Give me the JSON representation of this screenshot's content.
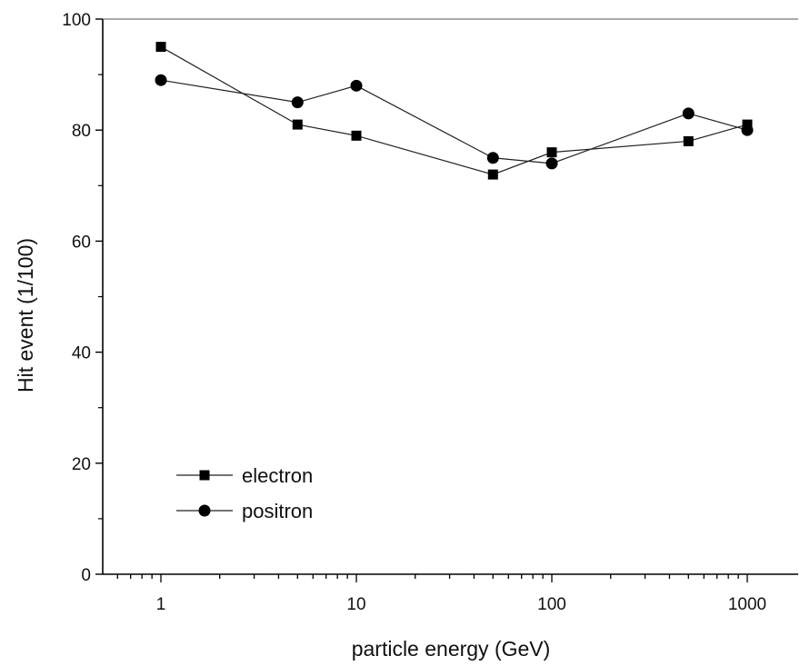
{
  "chart_data": {
    "type": "line",
    "title": "",
    "xlabel": "particle energy (GeV)",
    "ylabel": "Hit event (1/100)",
    "xscale": "log",
    "xlim": [
      0.5,
      3000
    ],
    "ylim": [
      0,
      100
    ],
    "xticks": [
      1,
      10,
      100,
      1000
    ],
    "xtick_labels": [
      "1",
      "10",
      "100",
      "1000"
    ],
    "yticks": [
      0,
      20,
      40,
      60,
      80,
      100
    ],
    "ytick_labels": [
      "0",
      "20",
      "40",
      "60",
      "80",
      "100"
    ],
    "grid": false,
    "legend_position": "bottom-left",
    "x": [
      1,
      5,
      10,
      50,
      100,
      500,
      1000
    ],
    "series": [
      {
        "name": "electron",
        "marker": "square",
        "values": [
          95,
          81,
          79,
          72,
          76,
          78,
          81
        ]
      },
      {
        "name": "positron",
        "marker": "circle",
        "values": [
          89,
          85,
          88,
          75,
          74,
          83,
          80
        ]
      }
    ]
  }
}
